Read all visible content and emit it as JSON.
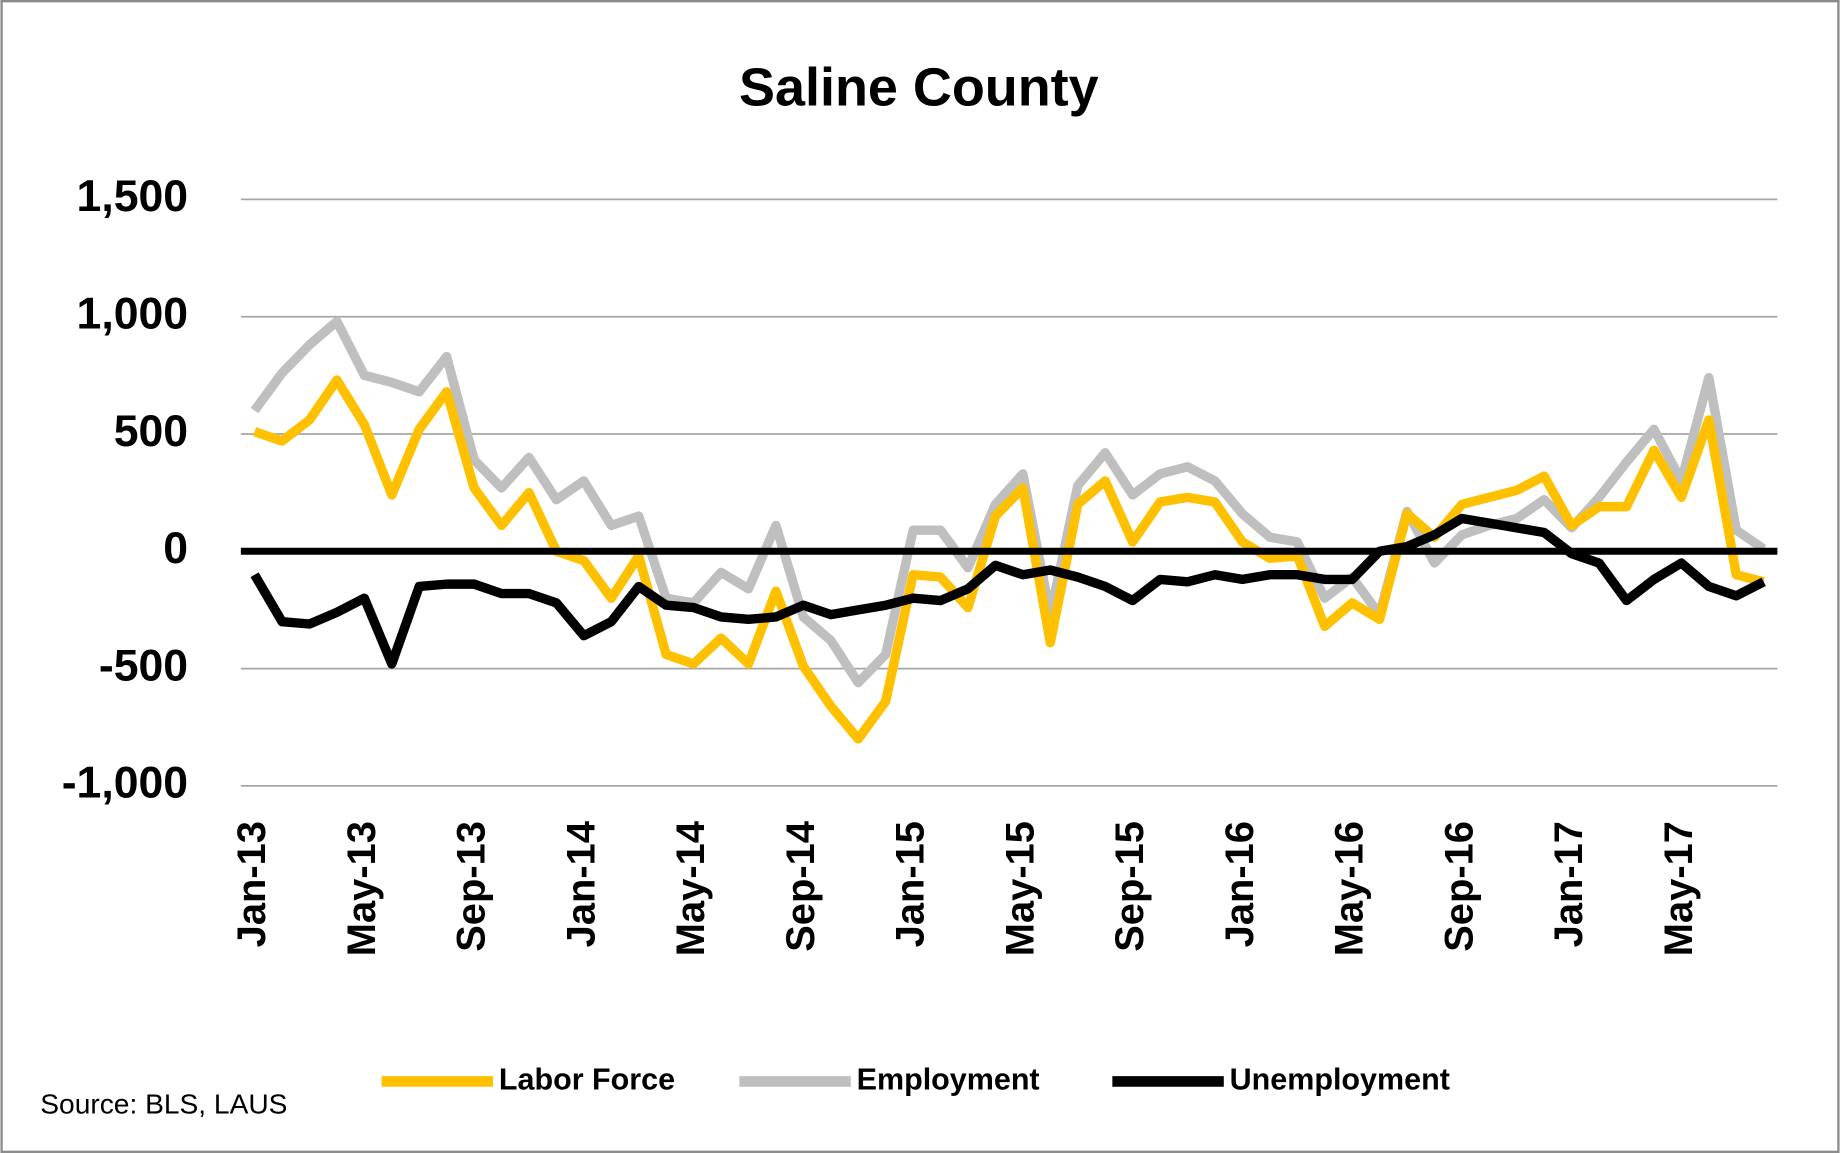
{
  "chart_data": {
    "type": "line",
    "title": "Saline County",
    "source": "Source: BLS, LAUS",
    "categories": [
      "Jan-13",
      null,
      null,
      null,
      "May-13",
      null,
      null,
      null,
      "Sep-13",
      null,
      null,
      null,
      "Jan-14",
      null,
      null,
      null,
      "May-14",
      null,
      null,
      null,
      "Sep-14",
      null,
      null,
      null,
      "Jan-15",
      null,
      null,
      null,
      "May-15",
      null,
      null,
      null,
      "Sep-15",
      null,
      null,
      null,
      "Jan-16",
      null,
      null,
      null,
      "May-16",
      null,
      null,
      null,
      "Sep-16",
      null,
      null,
      null,
      "Jan-17",
      null,
      null,
      null,
      "May-17",
      null,
      null,
      null
    ],
    "series": [
      {
        "name": "Labor Force",
        "color": "#ffc000",
        "values": [
          510,
          470,
          560,
          730,
          540,
          240,
          520,
          680,
          270,
          110,
          250,
          0,
          -40,
          -200,
          -20,
          -440,
          -480,
          -370,
          -480,
          -170,
          -490,
          -660,
          -800,
          -640,
          -100,
          -110,
          -240,
          150,
          270,
          -390,
          200,
          300,
          40,
          210,
          230,
          210,
          40,
          -30,
          -20,
          -320,
          -220,
          -290,
          160,
          60,
          200,
          230,
          260,
          320,
          110,
          190,
          190,
          430,
          230,
          560,
          -100,
          -130
        ]
      },
      {
        "name": "Employment",
        "color": "#bfbfbf",
        "values": [
          600,
          760,
          880,
          980,
          750,
          720,
          680,
          830,
          390,
          270,
          400,
          220,
          300,
          110,
          150,
          -200,
          -220,
          -90,
          -160,
          110,
          -280,
          -380,
          -560,
          -440,
          90,
          90,
          -70,
          200,
          330,
          -270,
          280,
          420,
          240,
          330,
          360,
          300,
          160,
          60,
          40,
          -200,
          -110,
          -270,
          170,
          -50,
          70,
          110,
          140,
          220,
          100,
          230,
          380,
          520,
          300,
          740,
          90,
          10
        ]
      },
      {
        "name": "Unemployment",
        "color": "#000000",
        "values": [
          -100,
          -300,
          -310,
          -260,
          -200,
          -480,
          -150,
          -140,
          -140,
          -180,
          -180,
          -220,
          -360,
          -300,
          -150,
          -230,
          -240,
          -280,
          -290,
          -280,
          -230,
          -270,
          -250,
          -230,
          -200,
          -210,
          -160,
          -60,
          -100,
          -80,
          -110,
          -150,
          -210,
          -120,
          -130,
          -100,
          -120,
          -100,
          -100,
          -120,
          -120,
          0,
          20,
          70,
          140,
          120,
          100,
          80,
          -10,
          -50,
          -210,
          -120,
          -50,
          -150,
          -190,
          -130
        ]
      }
    ],
    "ylim": [
      -1000,
      1500
    ],
    "yticks": [
      {
        "value": -1000,
        "label": "-1,000"
      },
      -500,
      0,
      500,
      {
        "value": 1000,
        "label": "1,000"
      },
      {
        "value": 1500,
        "label": "1,500"
      }
    ],
    "grid": true
  }
}
